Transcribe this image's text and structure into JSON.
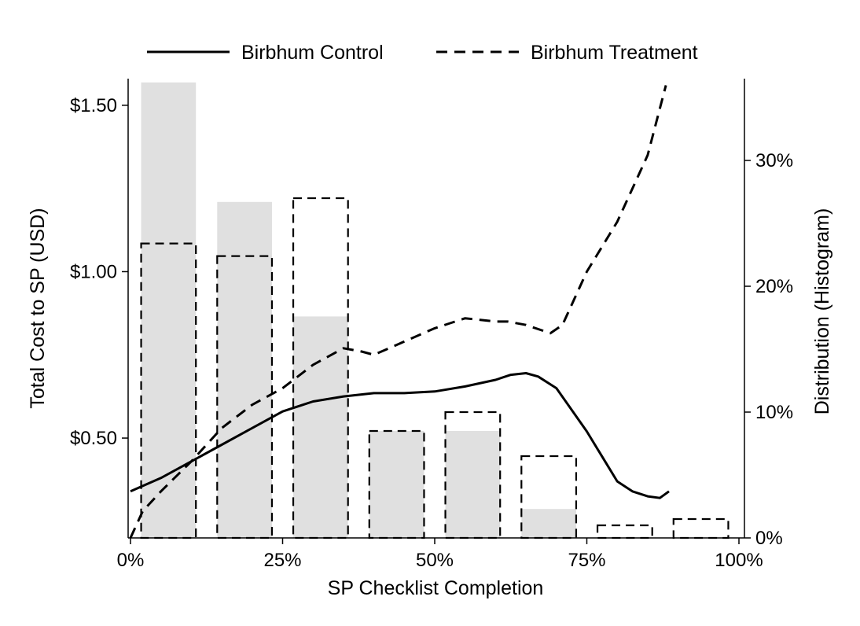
{
  "chart_data": {
    "type": "line",
    "title": "",
    "xlabel": "SP Checklist Completion",
    "ylabel": "Total Cost to SP (USD)",
    "y2label": "Distribution (Histogram)",
    "xlim": [
      0,
      100
    ],
    "ylim": [
      0.2,
      1.58
    ],
    "y2lim": [
      0,
      36.5
    ],
    "x_ticks": [
      {
        "value": 0,
        "label": "0%"
      },
      {
        "value": 25,
        "label": "25%"
      },
      {
        "value": 50,
        "label": "50%"
      },
      {
        "value": 75,
        "label": "75%"
      },
      {
        "value": 100,
        "label": "100%"
      }
    ],
    "y_ticks": [
      {
        "value": 0.5,
        "label": "$0.50"
      },
      {
        "value": 1.0,
        "label": "$1.00"
      },
      {
        "value": 1.5,
        "label": "$1.50"
      }
    ],
    "y2_ticks": [
      {
        "value": 0,
        "label": "0%"
      },
      {
        "value": 10,
        "label": "10%"
      },
      {
        "value": 20,
        "label": "20%"
      },
      {
        "value": 30,
        "label": "30%"
      }
    ],
    "grid": false,
    "legend_position": "top",
    "histogram": {
      "bin_centers": [
        6.25,
        18.75,
        31.25,
        43.75,
        56.25,
        68.75,
        81.25,
        93.75
      ],
      "bin_width": 9,
      "control_fill_color": "#e0e0e0",
      "control_values": [
        36.2,
        26.7,
        17.6,
        8.5,
        8.5,
        2.3,
        0,
        0
      ],
      "treatment_values": [
        23.4,
        22.4,
        27.0,
        8.5,
        10.0,
        6.5,
        1.0,
        1.5
      ]
    },
    "series": [
      {
        "name": "Birbhum Control",
        "style": "solid",
        "x": [
          0,
          5,
          10,
          15,
          20,
          25,
          27.5,
          30,
          35,
          40,
          45,
          50,
          55,
          60,
          62.5,
          65,
          67,
          70,
          75,
          78,
          80,
          82.5,
          85,
          87,
          88.5
        ],
        "y": [
          0.34,
          0.38,
          0.43,
          0.48,
          0.53,
          0.58,
          0.595,
          0.61,
          0.625,
          0.635,
          0.635,
          0.64,
          0.655,
          0.675,
          0.69,
          0.695,
          0.685,
          0.65,
          0.52,
          0.43,
          0.37,
          0.34,
          0.325,
          0.32,
          0.34
        ]
      },
      {
        "name": "Birbhum Treatment",
        "style": "dashed",
        "x": [
          0,
          2,
          5,
          10,
          15,
          20,
          25,
          30,
          35,
          38,
          40,
          45,
          50,
          55,
          60,
          62,
          65,
          69,
          71,
          73,
          75,
          80,
          85,
          88
        ],
        "y": [
          0.2,
          0.28,
          0.34,
          0.43,
          0.53,
          0.6,
          0.65,
          0.72,
          0.77,
          0.76,
          0.75,
          0.79,
          0.83,
          0.86,
          0.85,
          0.85,
          0.84,
          0.815,
          0.84,
          0.92,
          1.0,
          1.15,
          1.35,
          1.56
        ]
      }
    ]
  }
}
